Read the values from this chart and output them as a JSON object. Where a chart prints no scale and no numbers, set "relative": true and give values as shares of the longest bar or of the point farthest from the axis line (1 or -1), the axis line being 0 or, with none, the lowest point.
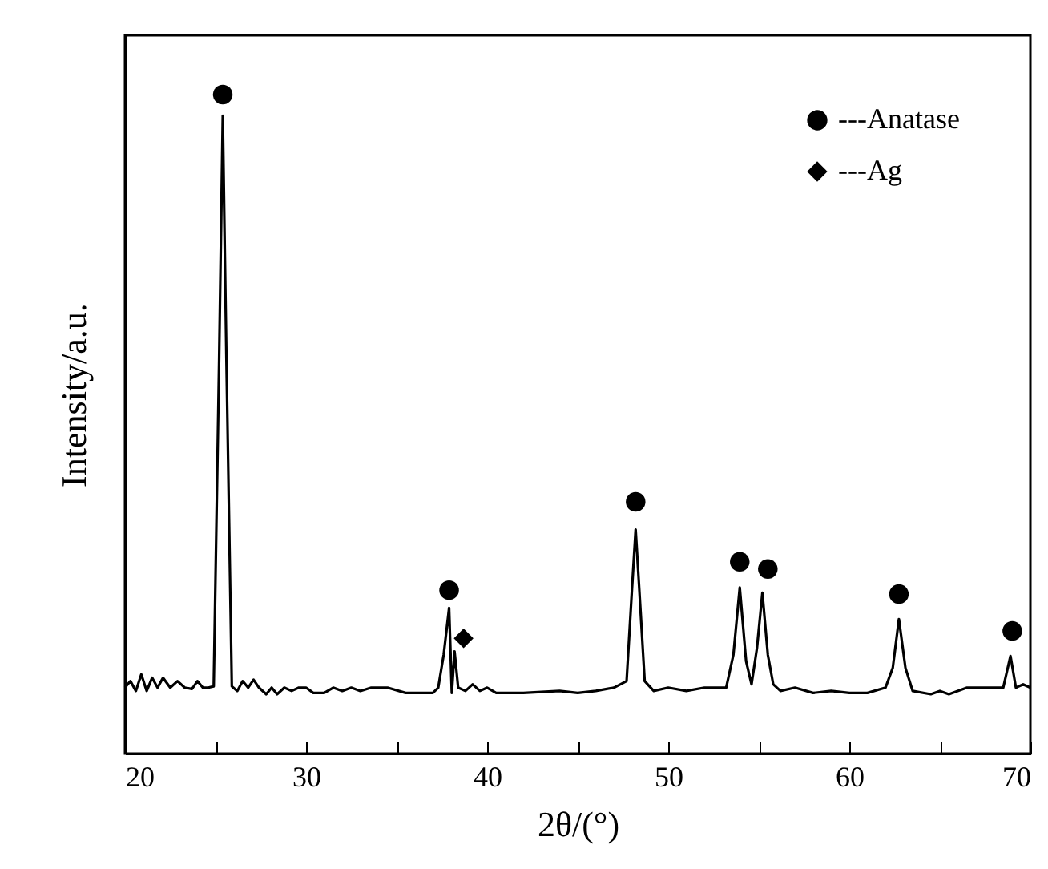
{
  "chart_data": {
    "type": "line",
    "relative": true,
    "xlabel": "2θ/(°)",
    "ylabel": "Intensity/a.u.",
    "xlim": [
      20,
      70
    ],
    "xticks": [
      20,
      {
        "value": 25,
        "label": null
      },
      30,
      {
        "value": 35,
        "label": null
      },
      40,
      {
        "value": 45,
        "label": null
      },
      50,
      {
        "value": 55,
        "label": null
      },
      60,
      {
        "value": 65,
        "label": null
      },
      70
    ],
    "legend": "top right",
    "grid": false,
    "series": [
      {
        "color": "#000000",
        "x": [
          20.0,
          20.3,
          20.6,
          20.9,
          21.2,
          21.5,
          21.8,
          22.1,
          22.5,
          22.9,
          23.3,
          23.7,
          24.0,
          24.3,
          24.6,
          24.9,
          25.2,
          25.4,
          25.6,
          25.9,
          26.2,
          26.5,
          26.8,
          27.1,
          27.4,
          27.8,
          28.1,
          28.4,
          28.8,
          29.2,
          29.6,
          30.0,
          30.4,
          31.0,
          31.5,
          32.0,
          32.5,
          33.0,
          33.6,
          34.5,
          35.5,
          36.5,
          37.0,
          37.3,
          37.6,
          37.9,
          38.05,
          38.2,
          38.4,
          38.8,
          39.2,
          39.6,
          40.0,
          40.5,
          42,
          44,
          45,
          46,
          47,
          47.7,
          48.0,
          48.2,
          48.4,
          48.7,
          49.2,
          50,
          51,
          52,
          53.2,
          53.6,
          53.95,
          54.3,
          54.6,
          54.9,
          55.2,
          55.5,
          55.8,
          56.2,
          57,
          58,
          59,
          60,
          61,
          62.0,
          62.4,
          62.74,
          63.1,
          63.5,
          64.5,
          65,
          65.5,
          66.5,
          67.5,
          68.5,
          68.9,
          69.2,
          69.6,
          70
        ],
        "values": [
          0.1,
          0.11,
          0.095,
          0.12,
          0.095,
          0.115,
          0.1,
          0.115,
          0.1,
          0.11,
          0.1,
          0.098,
          0.11,
          0.1,
          0.1,
          0.102,
          0.6,
          0.968,
          0.6,
          0.102,
          0.095,
          0.11,
          0.1,
          0.112,
          0.1,
          0.09,
          0.1,
          0.09,
          0.1,
          0.095,
          0.1,
          0.1,
          0.092,
          0.092,
          0.1,
          0.095,
          0.1,
          0.095,
          0.1,
          0.1,
          0.092,
          0.092,
          0.092,
          0.1,
          0.15,
          0.221,
          0.092,
          0.155,
          0.1,
          0.095,
          0.105,
          0.095,
          0.1,
          0.092,
          0.092,
          0.095,
          0.092,
          0.095,
          0.1,
          0.11,
          0.25,
          0.34,
          0.25,
          0.11,
          0.095,
          0.1,
          0.095,
          0.1,
          0.1,
          0.15,
          0.252,
          0.14,
          0.105,
          0.16,
          0.244,
          0.15,
          0.105,
          0.095,
          0.1,
          0.092,
          0.095,
          0.092,
          0.092,
          0.1,
          0.13,
          0.204,
          0.13,
          0.095,
          0.09,
          0.095,
          0.09,
          0.1,
          0.1,
          0.1,
          0.148,
          0.1,
          0.105,
          0.1
        ]
      },
      {
        "type": "scatter",
        "name": "---Anatase",
        "marker": "circle",
        "color": "#000000",
        "x": [
          25.4,
          37.9,
          48.2,
          53.95,
          55.5,
          62.74,
          69.0
        ],
        "values": [
          1,
          0.248,
          0.382,
          0.291,
          0.28,
          0.242,
          0.186
        ]
      },
      {
        "type": "scatter",
        "name": "---Ag",
        "marker": "diamond",
        "color": "#000000",
        "x": [
          38.7
        ],
        "values": [
          0.175
        ]
      }
    ]
  }
}
